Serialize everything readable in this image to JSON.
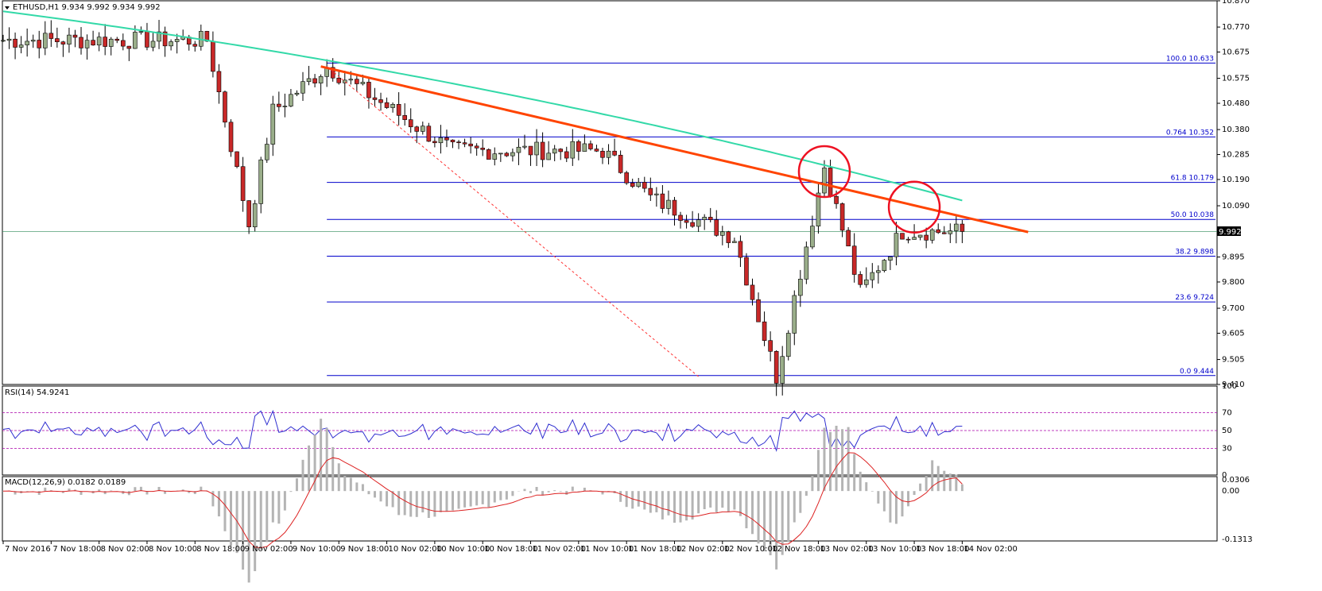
{
  "main_title": "ETHUSD,H1  9.934 9.992 9.934 9.992",
  "rsi_title": "RSI(14) 54.9241",
  "macd_title": "MACD(12,26,9) 0.0182 0.0189",
  "current_price": "9.992",
  "colors": {
    "bull_body": "#9aae8a",
    "bear_body": "#c82828",
    "wick": "#000000",
    "moving_average": "#33d9a8",
    "trendline": "#ff4400",
    "dotted_line": "#ff3333",
    "fib": "#0000cc",
    "rsi_line": "#2f2fd0",
    "rsi_levels": "#aa00aa",
    "macd_hist": "#b4b4b4",
    "macd_signal": "#dd2222",
    "circle": "#ee1122"
  },
  "chart_data": [
    {
      "type": "candlestick",
      "title": "ETHUSD,H1  9.934 9.992 9.934 9.992",
      "ylim": [
        9.41,
        10.87
      ],
      "y_ticks": [
        "10.870",
        "10.770",
        "10.675",
        "10.575",
        "10.480",
        "10.380",
        "10.285",
        "10.190",
        "10.090",
        "9.992",
        "9.895",
        "9.800",
        "9.700",
        "9.605",
        "9.505",
        "9.410"
      ],
      "x_ticks": [
        "7 Nov 2016",
        "7 Nov 18:00",
        "8 Nov 02:00",
        "8 Nov 10:00",
        "8 Nov 18:00",
        "9 Nov 02:00",
        "9 Nov 10:00",
        "9 Nov 18:00",
        "10 Nov 02:00",
        "10 Nov 10:00",
        "10 Nov 18:00",
        "11 Nov 02:00",
        "11 Nov 10:00",
        "11 Nov 18:00",
        "12 Nov 02:00",
        "12 Nov 10:00",
        "12 Nov 18:00",
        "13 Nov 02:00",
        "13 Nov 10:00",
        "13 Nov 18:00",
        "14 Nov 02:00"
      ],
      "fib_levels": [
        {
          "label": "100.0  10.633",
          "value": 10.633
        },
        {
          "label": "0.764  10.352",
          "value": 10.352
        },
        {
          "label": "61.8  10.179",
          "value": 10.179
        },
        {
          "label": "50.0  10.038",
          "value": 10.038
        },
        {
          "label": "38.2  9.898",
          "value": 9.898
        },
        {
          "label": "23.6  9.724",
          "value": 9.724
        },
        {
          "label": "0.0  9.444",
          "value": 9.444
        }
      ],
      "anchors": {
        "open": 10.72,
        "dip1": 10.02,
        "rebound1": 10.45,
        "fib_high": 10.62,
        "mid1": 10.3,
        "mid2": 10.12,
        "pre_low": 9.97,
        "low": 9.44,
        "spike_high": 10.24,
        "dip2": 9.76,
        "end": 9.992
      },
      "moving_average_level_start": 10.83,
      "moving_average_level_end": 10.11,
      "trendline_start": 10.62,
      "trendline_end": 9.99,
      "dotted_line_start": 10.62,
      "dotted_line_end": 9.44
    },
    {
      "type": "line",
      "title": "RSI(14) 54.9241",
      "ylim": [
        0,
        100
      ],
      "y_ticks": [
        "100",
        "70",
        "50",
        "30",
        "0"
      ],
      "levels": [
        70,
        50,
        30
      ],
      "last_value": 54.9241
    },
    {
      "type": "bar",
      "title": "MACD(12,26,9) 0.0182 0.0189",
      "ylim": [
        -0.1313,
        0.0306
      ],
      "y_ticks": [
        "0.0306",
        "0.00",
        "-0.1313"
      ],
      "macd": 0.0182,
      "signal": 0.0189
    }
  ]
}
